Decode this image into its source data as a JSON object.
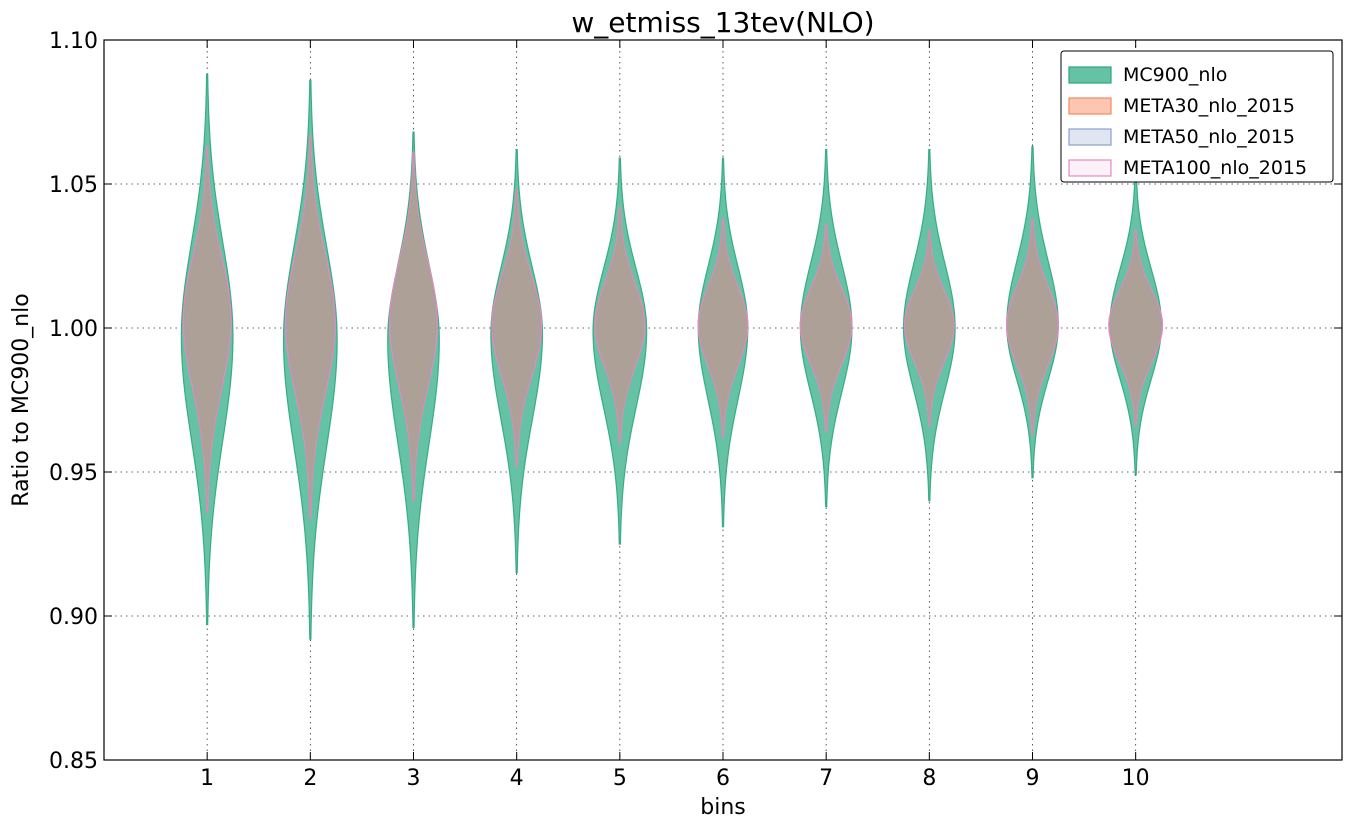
{
  "chart_data": {
    "type": "violin",
    "title": "w_etmiss_13tev(NLO)",
    "xlabel": "bins",
    "ylabel": "Ratio to MC900_nlo",
    "categories": [
      "1",
      "2",
      "3",
      "4",
      "5",
      "6",
      "7",
      "8",
      "9",
      "10"
    ],
    "x_positions": [
      1,
      2,
      3,
      4,
      5,
      6,
      7,
      8,
      9,
      10
    ],
    "xlim": [
      0,
      12
    ],
    "ylim": [
      0.85,
      1.1
    ],
    "yticks": [
      "0.85",
      "0.90",
      "0.95",
      "1.00",
      "1.05",
      "1.10"
    ],
    "grid": true,
    "legend_position": "top-right",
    "series": [
      {
        "name": "MC900_nlo",
        "fill": "#66c2a5",
        "stroke": "#2ca87a",
        "opacity": 1.0,
        "min": [
          0.897,
          0.892,
          0.896,
          0.915,
          0.925,
          0.931,
          0.938,
          0.94,
          0.948,
          0.949
        ],
        "max": [
          1.088,
          1.086,
          1.068,
          1.062,
          1.059,
          1.059,
          1.062,
          1.062,
          1.063,
          1.055
        ],
        "center": [
          0.997,
          0.996,
          0.996,
          0.998,
          0.999,
          1.0,
          1.0,
          1.0,
          1.001,
          1.001
        ],
        "halfwidth": [
          0.25,
          0.26,
          0.25,
          0.25,
          0.26,
          0.24,
          0.25,
          0.25,
          0.25,
          0.25
        ]
      },
      {
        "name": "META30_nlo_2015",
        "fill": "#fc8d62",
        "stroke": "#f28a60",
        "opacity": 0.5,
        "min": [
          0.936,
          0.934,
          0.94,
          0.952,
          0.96,
          0.962,
          0.964,
          0.966,
          0.963,
          0.966
        ],
        "max": [
          1.063,
          1.067,
          1.061,
          1.048,
          1.042,
          1.038,
          1.036,
          1.034,
          1.038,
          1.034
        ],
        "center": [
          1.003,
          1.002,
          1.002,
          1.001,
          1.001,
          1.001,
          1.001,
          1.001,
          1.001,
          1.001
        ],
        "halfwidth": [
          0.23,
          0.24,
          0.23,
          0.24,
          0.24,
          0.24,
          0.25,
          0.24,
          0.25,
          0.26
        ]
      },
      {
        "name": "META50_nlo_2015",
        "fill": "#8da0cb",
        "stroke": "#8da0cb",
        "opacity": 0.25,
        "min": [
          0.936,
          0.934,
          0.94,
          0.952,
          0.96,
          0.962,
          0.964,
          0.966,
          0.963,
          0.966
        ],
        "max": [
          1.063,
          1.067,
          1.061,
          1.048,
          1.042,
          1.038,
          1.036,
          1.034,
          1.038,
          1.034
        ],
        "center": [
          1.003,
          1.002,
          1.002,
          1.001,
          1.001,
          1.001,
          1.001,
          1.001,
          1.001,
          1.001
        ],
        "halfwidth": [
          0.22,
          0.23,
          0.22,
          0.23,
          0.24,
          0.24,
          0.25,
          0.24,
          0.25,
          0.25
        ]
      },
      {
        "name": "META100_nlo_2015",
        "fill": "#e78ac3",
        "stroke": "#e78ac3",
        "opacity": 0.12,
        "min": [
          0.936,
          0.934,
          0.94,
          0.952,
          0.96,
          0.962,
          0.964,
          0.966,
          0.963,
          0.966
        ],
        "max": [
          1.063,
          1.067,
          1.061,
          1.048,
          1.042,
          1.038,
          1.036,
          1.034,
          1.038,
          1.034
        ],
        "center": [
          1.003,
          1.002,
          1.002,
          1.001,
          1.001,
          1.001,
          1.001,
          1.001,
          1.001,
          1.001
        ],
        "halfwidth": [
          0.23,
          0.24,
          0.23,
          0.24,
          0.24,
          0.24,
          0.25,
          0.24,
          0.25,
          0.26
        ]
      }
    ],
    "body_colors": {
      "overlap": "#ad9f96"
    }
  }
}
